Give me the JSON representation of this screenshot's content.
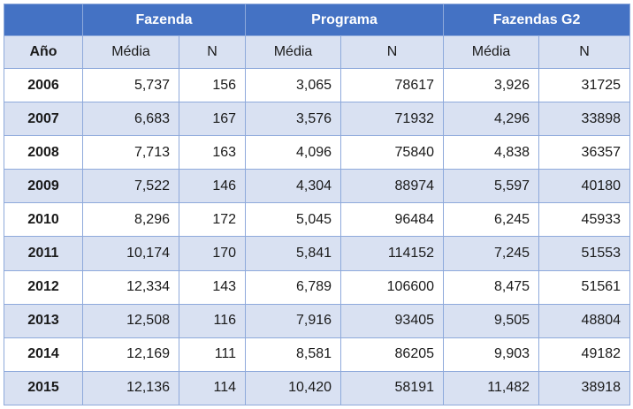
{
  "table": {
    "groups": [
      "Fazenda",
      "Programa",
      "Fazendas G2"
    ],
    "sub_headers": [
      "Año",
      "Média",
      "N",
      "Média",
      "N",
      "Média",
      "N"
    ],
    "rows": [
      [
        "2006",
        "5,737",
        "156",
        "3,065",
        "78617",
        "3,926",
        "31725"
      ],
      [
        "2007",
        "6,683",
        "167",
        "3,576",
        "71932",
        "4,296",
        "33898"
      ],
      [
        "2008",
        "7,713",
        "163",
        "4,096",
        "75840",
        "4,838",
        "36357"
      ],
      [
        "2009",
        "7,522",
        "146",
        "4,304",
        "88974",
        "5,597",
        "40180"
      ],
      [
        "2010",
        "8,296",
        "172",
        "5,045",
        "96484",
        "6,245",
        "45933"
      ],
      [
        "2011",
        "10,174",
        "170",
        "5,841",
        "114152",
        "7,245",
        "51553"
      ],
      [
        "2012",
        "12,334",
        "143",
        "6,789",
        "106600",
        "8,475",
        "51561"
      ],
      [
        "2013",
        "12,508",
        "116",
        "7,916",
        "93405",
        "9,505",
        "48804"
      ],
      [
        "2014",
        "12,169",
        "111",
        "8,581",
        "86205",
        "9,903",
        "49182"
      ],
      [
        "2015",
        "12,136",
        "114",
        "10,420",
        "58191",
        "11,482",
        "38918"
      ]
    ]
  },
  "colors": {
    "header_blue": "#4472c4",
    "band_light": "#d9e1f2",
    "border": "#8ea9db"
  }
}
